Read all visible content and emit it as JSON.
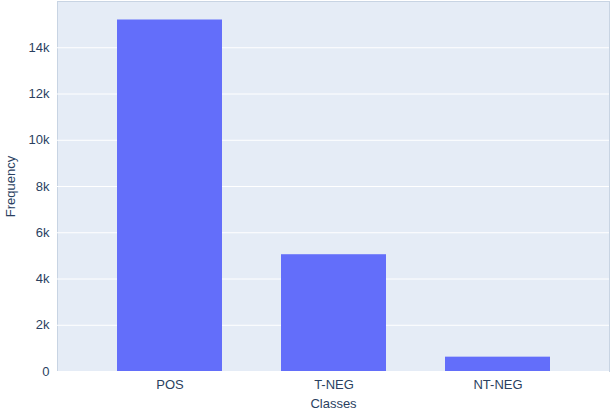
{
  "chart_data": {
    "type": "bar",
    "x_label": "Classes",
    "y_label": "Frequency",
    "categories": [
      "POS",
      "T-NEG",
      "NT-NEG"
    ],
    "values": [
      15200,
      5050,
      620
    ],
    "color": "#636efa",
    "ylim": [
      0,
      16000
    ],
    "yticks": [
      0,
      {
        "value": 2000,
        "label": "2k"
      },
      {
        "value": 4000,
        "label": "4k"
      },
      {
        "value": 6000,
        "label": "6k"
      },
      {
        "value": 8000,
        "label": "8k"
      },
      {
        "value": 10000,
        "label": "10k"
      },
      {
        "value": 12000,
        "label": "12k"
      },
      {
        "value": 14000,
        "label": "14k"
      }
    ],
    "grid": true
  }
}
